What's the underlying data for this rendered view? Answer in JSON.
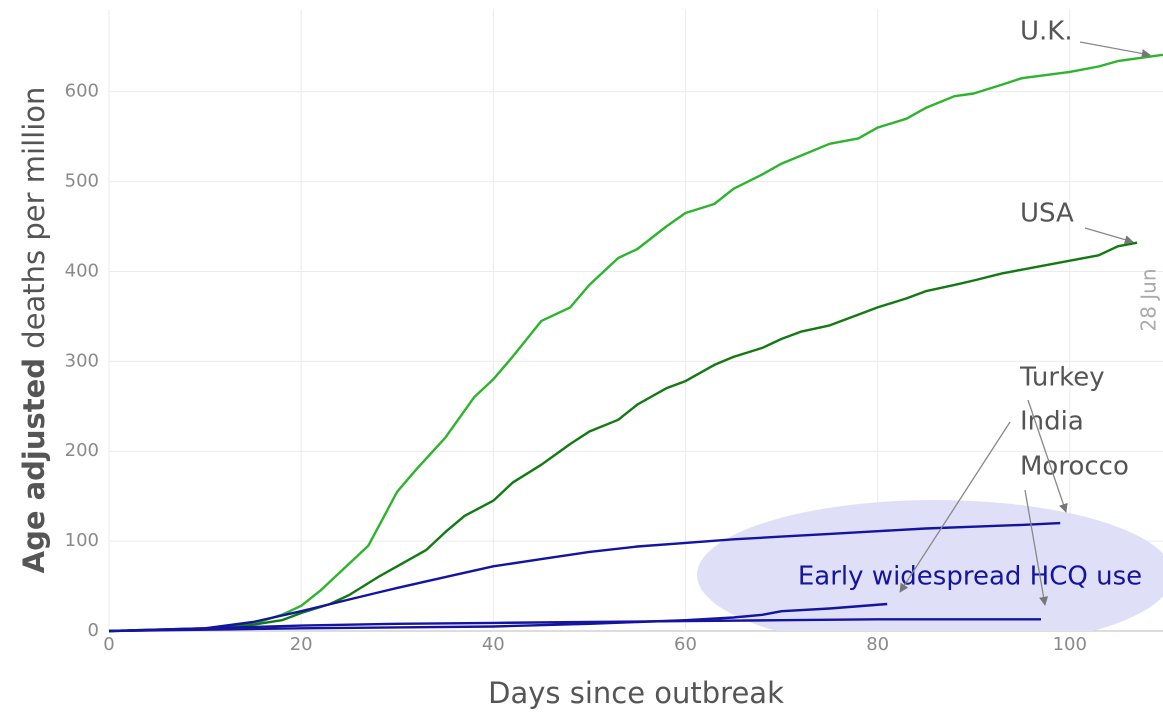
{
  "chart_data": {
    "type": "line",
    "xlabel": "Days since outbreak",
    "ylabel_bold": "Age adjusted",
    "ylabel": "deaths per million",
    "xlim": [
      0,
      109.7
    ],
    "ylim": [
      0,
      692
    ],
    "xticks": [
      0,
      20,
      40,
      60,
      80,
      100
    ],
    "yticks": [
      0,
      100,
      200,
      300,
      400,
      500,
      600
    ],
    "grid": true,
    "date_note": "28 Jun",
    "shaded_label": "Early widespread HCQ use",
    "series": [
      {
        "name": "U.K.",
        "color": "#2cb52c",
        "x": [
          0,
          10,
          15,
          18,
          20,
          22,
          25,
          27,
          30,
          32,
          35,
          38,
          40,
          42,
          45,
          48,
          50,
          53,
          55,
          58,
          60,
          63,
          65,
          68,
          70,
          75,
          78,
          80,
          83,
          85,
          88,
          90,
          93,
          95,
          100,
          103,
          105,
          109.7
        ],
        "values": [
          0,
          2,
          8,
          18,
          28,
          45,
          75,
          95,
          155,
          180,
          215,
          260,
          280,
          305,
          345,
          360,
          385,
          415,
          425,
          450,
          465,
          475,
          492,
          508,
          520,
          542,
          548,
          560,
          570,
          582,
          595,
          598,
          608,
          615,
          622,
          628,
          634,
          641
        ]
      },
      {
        "name": "USA",
        "color": "#137a13",
        "x": [
          0,
          10,
          15,
          18,
          20,
          23,
          25,
          28,
          30,
          33,
          35,
          37,
          40,
          42,
          45,
          48,
          50,
          53,
          55,
          58,
          60,
          63,
          65,
          68,
          70,
          72,
          75,
          78,
          80,
          83,
          85,
          88,
          90,
          93,
          95,
          100,
          103,
          105,
          107
        ],
        "values": [
          0,
          2,
          7,
          12,
          20,
          30,
          40,
          60,
          72,
          90,
          110,
          128,
          145,
          165,
          185,
          208,
          222,
          235,
          252,
          270,
          278,
          296,
          305,
          315,
          325,
          333,
          340,
          352,
          360,
          370,
          378,
          385,
          390,
          398,
          402,
          412,
          418,
          428,
          432
        ]
      },
      {
        "name": "Turkey",
        "color": "#1414a0",
        "x": [
          0,
          10,
          15,
          20,
          25,
          30,
          35,
          40,
          45,
          50,
          55,
          60,
          65,
          70,
          75,
          80,
          85,
          90,
          95,
          99
        ],
        "values": [
          0,
          3,
          10,
          22,
          35,
          48,
          60,
          72,
          80,
          88,
          94,
          98,
          102,
          105,
          108,
          111,
          114,
          116,
          118,
          120
        ]
      },
      {
        "name": "India",
        "color": "#1414a0",
        "x": [
          0,
          20,
          40,
          50,
          55,
          60,
          65,
          68,
          70,
          75,
          81
        ],
        "values": [
          0,
          3,
          5,
          8,
          10,
          12,
          15,
          18,
          22,
          25,
          30
        ]
      },
      {
        "name": "Morocco",
        "color": "#1414a0",
        "x": [
          0,
          20,
          30,
          40,
          50,
          60,
          70,
          80,
          97
        ],
        "values": [
          0,
          6,
          8,
          9,
          10,
          11,
          12,
          13,
          13
        ]
      }
    ]
  }
}
